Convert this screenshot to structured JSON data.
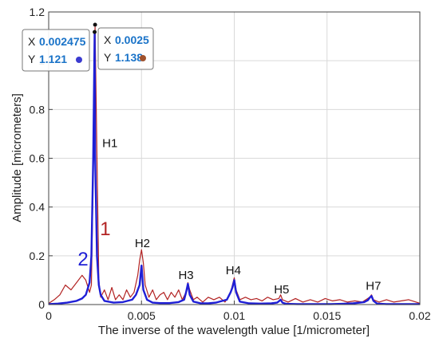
{
  "colors": {
    "series1": "#b22222",
    "series2": "#1f1fd6",
    "grid": "#d9d9d9",
    "datatip_value": "#1a73c8"
  },
  "chart_data": {
    "type": "line",
    "xlabel": "The inverse of the wavelength value [1/micrometer]",
    "ylabel": "Amplitude [micrometers]",
    "xlim": [
      0,
      0.02
    ],
    "ylim": [
      0,
      1.2
    ],
    "x_ticks": [
      0,
      0.005,
      0.01,
      0.015,
      0.02
    ],
    "x_tick_labels": [
      "0",
      "0.005",
      "0.01",
      "0.015",
      "0.02"
    ],
    "y_ticks": [
      0,
      0.2,
      0.4,
      0.6,
      0.8,
      1,
      1.2
    ],
    "y_tick_labels": [
      "0",
      "0.2",
      "0.4",
      "0.6",
      "0.8",
      "1",
      "1.2"
    ],
    "grid": true,
    "series": [
      {
        "id": "1",
        "color": "#b22222",
        "x": [
          0,
          0.0003,
          0.0006,
          0.0009,
          0.0012,
          0.0015,
          0.0018,
          0.002,
          0.0022,
          0.0023,
          0.0024,
          0.0025,
          0.0026,
          0.0027,
          0.0028,
          0.003,
          0.0032,
          0.0034,
          0.0036,
          0.0038,
          0.004,
          0.0042,
          0.0044,
          0.0046,
          0.0048,
          0.0049,
          0.005,
          0.0051,
          0.0052,
          0.0054,
          0.0056,
          0.0058,
          0.006,
          0.0062,
          0.0064,
          0.0066,
          0.0068,
          0.007,
          0.0072,
          0.0074,
          0.0075,
          0.0076,
          0.0078,
          0.008,
          0.0083,
          0.0086,
          0.0089,
          0.0092,
          0.0095,
          0.0098,
          0.0099,
          0.01,
          0.0101,
          0.0103,
          0.0106,
          0.0109,
          0.0112,
          0.0115,
          0.0118,
          0.0121,
          0.0124,
          0.0125,
          0.0126,
          0.0129,
          0.0133,
          0.0137,
          0.0141,
          0.0145,
          0.0149,
          0.0153,
          0.0157,
          0.0161,
          0.0165,
          0.0169,
          0.0173,
          0.0174,
          0.0175,
          0.0178,
          0.0182,
          0.0186,
          0.019,
          0.0194,
          0.0198,
          0.02
        ],
        "y": [
          0.005,
          0.02,
          0.04,
          0.08,
          0.06,
          0.09,
          0.12,
          0.1,
          0.05,
          0.08,
          0.55,
          1.138,
          0.6,
          0.1,
          0.03,
          0.06,
          0.02,
          0.07,
          0.02,
          0.04,
          0.02,
          0.06,
          0.03,
          0.05,
          0.12,
          0.18,
          0.225,
          0.17,
          0.08,
          0.03,
          0.06,
          0.02,
          0.04,
          0.05,
          0.02,
          0.05,
          0.03,
          0.06,
          0.02,
          0.05,
          0.09,
          0.06,
          0.02,
          0.03,
          0.01,
          0.03,
          0.02,
          0.03,
          0.01,
          0.05,
          0.08,
          0.11,
          0.06,
          0.02,
          0.03,
          0.02,
          0.025,
          0.015,
          0.03,
          0.02,
          0.025,
          0.04,
          0.02,
          0.01,
          0.025,
          0.01,
          0.02,
          0.01,
          0.025,
          0.015,
          0.02,
          0.01,
          0.015,
          0.01,
          0.03,
          0.04,
          0.02,
          0.01,
          0.02,
          0.01,
          0.015,
          0.02,
          0.01,
          0.005
        ]
      },
      {
        "id": "2",
        "color": "#1f1fd6",
        "x": [
          0,
          0.0005,
          0.001,
          0.0015,
          0.0018,
          0.002,
          0.0022,
          0.0023,
          0.0024,
          0.0024755,
          0.0025,
          0.0026,
          0.0027,
          0.0028,
          0.003,
          0.0035,
          0.004,
          0.0045,
          0.0047,
          0.0049,
          0.005,
          0.0051,
          0.0053,
          0.0056,
          0.006,
          0.0065,
          0.007,
          0.0073,
          0.0074,
          0.0075,
          0.0076,
          0.0078,
          0.0082,
          0.0086,
          0.009,
          0.0096,
          0.0098,
          0.0099,
          0.01,
          0.0101,
          0.0103,
          0.0108,
          0.0114,
          0.012,
          0.0123,
          0.0124,
          0.0125,
          0.0126,
          0.0128,
          0.0134,
          0.014,
          0.0146,
          0.0152,
          0.0158,
          0.0164,
          0.017,
          0.0172,
          0.0173,
          0.0174,
          0.0175,
          0.0177,
          0.0182,
          0.0188,
          0.0194,
          0.02
        ],
        "y": [
          0.002,
          0.004,
          0.008,
          0.015,
          0.025,
          0.04,
          0.09,
          0.2,
          0.6,
          1.121,
          0.62,
          0.2,
          0.08,
          0.04,
          0.015,
          0.008,
          0.01,
          0.02,
          0.04,
          0.08,
          0.16,
          0.06,
          0.02,
          0.008,
          0.006,
          0.006,
          0.01,
          0.02,
          0.05,
          0.085,
          0.04,
          0.012,
          0.005,
          0.005,
          0.008,
          0.02,
          0.05,
          0.07,
          0.1,
          0.05,
          0.012,
          0.005,
          0.004,
          0.005,
          0.008,
          0.013,
          0.02,
          0.008,
          0.003,
          0.002,
          0.002,
          0.002,
          0.002,
          0.003,
          0.005,
          0.01,
          0.018,
          0.028,
          0.035,
          0.015,
          0.004,
          0.002,
          0.002,
          0.002,
          0.002
        ]
      }
    ],
    "annotations": {
      "series_labels": [
        {
          "text": "1",
          "color": "#b22222",
          "x": 0.00305,
          "y": 0.285
        },
        {
          "text": "2",
          "color": "#1f1fd6",
          "x": 0.00185,
          "y": 0.16
        }
      ],
      "harmonic_labels": [
        {
          "text": "H1",
          "x": 0.0033,
          "y": 0.645
        },
        {
          "text": "H2",
          "x": 0.00505,
          "y": 0.235
        },
        {
          "text": "H3",
          "x": 0.0074,
          "y": 0.105
        },
        {
          "text": "H4",
          "x": 0.00995,
          "y": 0.125
        },
        {
          "text": "H5",
          "x": 0.01255,
          "y": 0.045
        },
        {
          "text": "H7",
          "x": 0.0175,
          "y": 0.06
        }
      ]
    },
    "datatips": [
      {
        "x_key": "X",
        "x_value": "0.002475",
        "y_key": "Y",
        "y_value": "1.121",
        "marker_color": "#3b3bd0"
      },
      {
        "x_key": "X",
        "x_value": "0.0025",
        "y_key": "Y",
        "y_value": "1.138",
        "marker_color": "#a0522d"
      }
    ]
  }
}
